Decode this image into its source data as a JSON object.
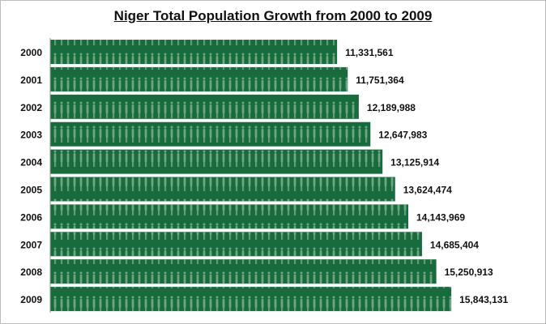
{
  "chart_data": {
    "type": "bar",
    "orientation": "horizontal",
    "title": "Niger Total Population Growth from 2000 to 2009",
    "categories": [
      "2000",
      "2001",
      "2002",
      "2003",
      "2004",
      "2005",
      "2006",
      "2007",
      "2008",
      "2009"
    ],
    "values": [
      11331561,
      11751364,
      12189988,
      12647983,
      13125914,
      13624474,
      14143969,
      14685404,
      15250913,
      15843131
    ],
    "value_labels": [
      "11,331,561",
      "11,751,364",
      "12,189,988",
      "12,647,983",
      "13,125,914",
      "13,624,474",
      "14,143,969",
      "14,685,404",
      "15,250,913",
      "15,843,131"
    ],
    "xlim": [
      0,
      19840000
    ],
    "grid": false,
    "legend": "none",
    "colors": {
      "bar": "#186b3c",
      "pattern": "#6fa583"
    }
  }
}
